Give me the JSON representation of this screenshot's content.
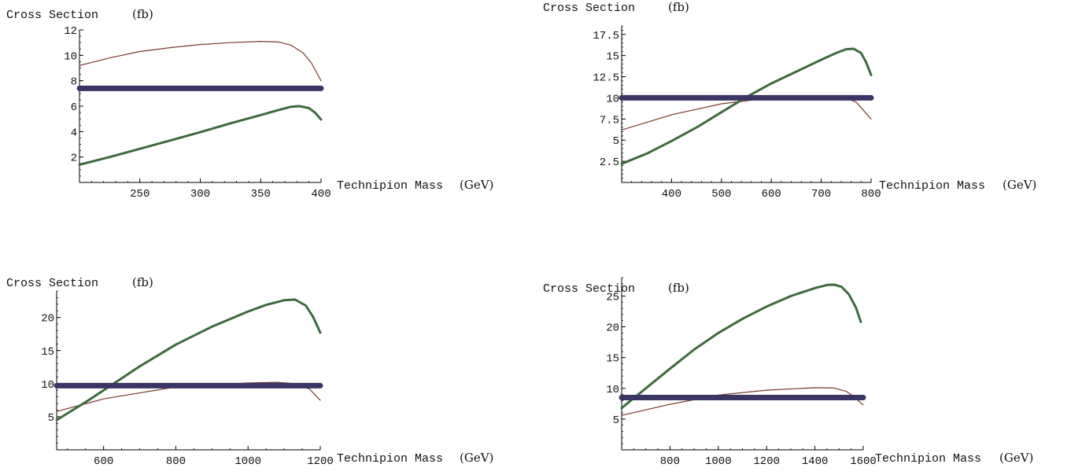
{
  "chart_data": [
    {
      "type": "line",
      "ylabel": "Cross Section",
      "ylabel_unit": "(fb)",
      "xlabel": "Technipion Mass",
      "xlabel_unit": "(GeV)",
      "xlim": [
        200,
        400
      ],
      "ylim": [
        0,
        12
      ],
      "xticks": [
        250,
        300,
        350,
        400
      ],
      "xtick_labels": [
        "250",
        "300",
        "350",
        "400"
      ],
      "xminor_step": 10,
      "yticks": [
        2,
        4,
        6,
        8,
        10,
        12
      ],
      "ytick_labels": [
        "2",
        "4",
        "6",
        "8",
        "10",
        "12"
      ],
      "yminor_step": 0.5,
      "series": [
        {
          "color": "#7a3a2a",
          "width": 1.2,
          "x": [
            200,
            225,
            250,
            275,
            300,
            325,
            350,
            365,
            375,
            385,
            392,
            400
          ],
          "y": [
            9.2,
            9.8,
            10.3,
            10.6,
            10.85,
            11.0,
            11.1,
            11.05,
            10.8,
            10.2,
            9.4,
            8.0
          ]
        },
        {
          "color": "#3d6b3d",
          "width": 3,
          "x": [
            200,
            225,
            250,
            275,
            300,
            325,
            350,
            365,
            375,
            382,
            390,
            395,
            400
          ],
          "y": [
            1.4,
            2.0,
            2.65,
            3.3,
            3.95,
            4.65,
            5.3,
            5.7,
            5.95,
            6.0,
            5.85,
            5.5,
            4.95
          ]
        },
        {
          "color": "#3a3562",
          "width": 7,
          "x": [
            200,
            400
          ],
          "y": [
            7.4,
            7.4
          ]
        }
      ]
    },
    {
      "type": "line",
      "ylabel": "Cross Section",
      "ylabel_unit": "(fb)",
      "xlabel": "Technipion Mass",
      "xlabel_unit": "(GeV)",
      "xlim": [
        300,
        800
      ],
      "ylim": [
        0,
        18.5
      ],
      "xticks": [
        400,
        500,
        600,
        700,
        800
      ],
      "xtick_labels": [
        "400",
        "500",
        "600",
        "700",
        "800"
      ],
      "xminor_step": 20,
      "yticks": [
        2.5,
        5,
        7.5,
        10,
        12.5,
        15,
        17.5
      ],
      "ytick_labels": [
        "2.5",
        "5",
        "7.5",
        "10",
        "12.5",
        "15",
        "17.5"
      ],
      "yminor_step": 0.5,
      "series": [
        {
          "color": "#7a3a2a",
          "width": 1.2,
          "x": [
            300,
            400,
            500,
            600,
            700,
            740,
            770,
            800
          ],
          "y": [
            6.2,
            8.0,
            9.3,
            10.0,
            10.25,
            10.2,
            9.5,
            7.5
          ]
        },
        {
          "color": "#3d6b3d",
          "width": 3,
          "x": [
            300,
            350,
            400,
            450,
            500,
            550,
            600,
            650,
            700,
            730,
            750,
            765,
            780,
            790,
            800
          ],
          "y": [
            2.2,
            3.4,
            4.9,
            6.5,
            8.3,
            10.1,
            11.7,
            13.1,
            14.5,
            15.3,
            15.75,
            15.8,
            15.3,
            14.2,
            12.7
          ]
        },
        {
          "color": "#3a3562",
          "width": 7,
          "x": [
            300,
            800
          ],
          "y": [
            10.0,
            10.0
          ]
        }
      ]
    },
    {
      "type": "line",
      "ylabel": "Cross Section",
      "ylabel_unit": "(fb)",
      "xlabel": "Technipion Mass",
      "xlabel_unit": "(GeV)",
      "xlim": [
        470,
        1200
      ],
      "ylim": [
        0,
        24
      ],
      "xticks": [
        600,
        800,
        1000,
        1200
      ],
      "xtick_labels": [
        "600",
        "800",
        "1000",
        "1200"
      ],
      "xminor_step": 50,
      "yticks": [
        5,
        10,
        15,
        20
      ],
      "ytick_labels": [
        "5",
        "10",
        "15",
        "20"
      ],
      "yminor_step": 1,
      "series": [
        {
          "color": "#7a3a2a",
          "width": 1.2,
          "x": [
            470,
            600,
            800,
            1000,
            1080,
            1130,
            1170,
            1200
          ],
          "y": [
            5.8,
            7.7,
            9.5,
            10.1,
            10.2,
            10.0,
            9.2,
            7.5
          ]
        },
        {
          "color": "#3d6b3d",
          "width": 3,
          "x": [
            470,
            550,
            600,
            700,
            800,
            900,
            1000,
            1050,
            1100,
            1130,
            1160,
            1180,
            1200
          ],
          "y": [
            4.5,
            7.2,
            9.0,
            12.6,
            15.9,
            18.6,
            20.9,
            21.9,
            22.6,
            22.7,
            21.8,
            20.1,
            17.7
          ]
        },
        {
          "color": "#3a3562",
          "width": 7,
          "x": [
            470,
            1200
          ],
          "y": [
            9.7,
            9.7
          ]
        }
      ]
    },
    {
      "type": "line",
      "ylabel": "Cross Section",
      "ylabel_unit": "(fb)",
      "xlabel": "Technipion Mass",
      "xlabel_unit": "(GeV)",
      "xlim": [
        600,
        1600
      ],
      "ylim": [
        0,
        28
      ],
      "xticks": [
        800,
        1000,
        1200,
        1400,
        1600
      ],
      "xtick_labels": [
        "800",
        "1000",
        "1200",
        "1400",
        "1600"
      ],
      "xminor_step": 50,
      "yticks": [
        5,
        10,
        15,
        20,
        25
      ],
      "ytick_labels": [
        "5",
        "10",
        "15",
        "20",
        "25"
      ],
      "yminor_step": 1,
      "series": [
        {
          "color": "#7a3a2a",
          "width": 1.2,
          "x": [
            600,
            800,
            1000,
            1200,
            1400,
            1480,
            1530,
            1560,
            1600
          ],
          "y": [
            5.6,
            7.4,
            8.9,
            9.7,
            10.1,
            10.05,
            9.5,
            8.7,
            7.3
          ]
        },
        {
          "color": "#3d6b3d",
          "width": 3,
          "x": [
            600,
            700,
            800,
            900,
            1000,
            1100,
            1200,
            1300,
            1400,
            1450,
            1480,
            1510,
            1540,
            1570,
            1590
          ],
          "y": [
            6.8,
            10.0,
            13.2,
            16.3,
            19.0,
            21.3,
            23.3,
            25.0,
            26.3,
            26.8,
            26.85,
            26.5,
            25.3,
            23.1,
            20.8
          ]
        },
        {
          "color": "#3a3562",
          "width": 7,
          "x": [
            600,
            1600
          ],
          "y": [
            8.5,
            8.5
          ]
        }
      ]
    }
  ]
}
